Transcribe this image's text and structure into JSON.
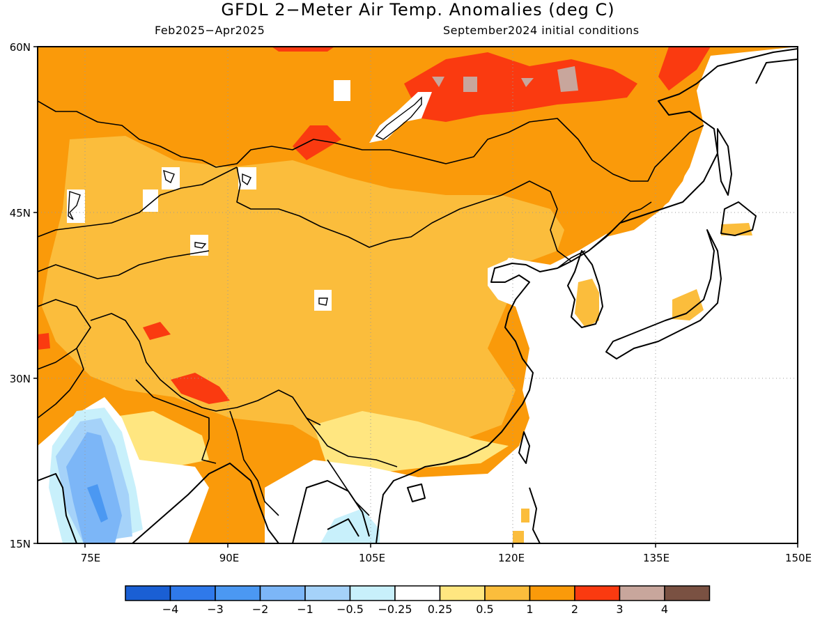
{
  "title": "GFDL 2−Meter Air Temp. Anomalies (deg C)",
  "period": "Feb2025−Apr2025",
  "init": "September2024 initial conditions",
  "map": {
    "lat_labels": [
      "60N",
      "45N",
      "30N",
      "15N"
    ],
    "lon_labels": [
      "75E",
      "90E",
      "105E",
      "120E",
      "135E",
      "150E"
    ]
  },
  "colorbar": {
    "colors": [
      "#1a5fd4",
      "#2f79ea",
      "#4b98f2",
      "#7cb6f7",
      "#a5d2f9",
      "#c8f0fb",
      "#ffffff",
      "#ffe680",
      "#fbbd3c",
      "#fa9a0a",
      "#fa3a10",
      "#c8a69c",
      "#7a5142"
    ],
    "labels": [
      "−4",
      "−3",
      "−2",
      "−1",
      "−0.5",
      "−0.25",
      "0.25",
      "0.5",
      "1",
      "2",
      "3",
      "4"
    ]
  }
}
